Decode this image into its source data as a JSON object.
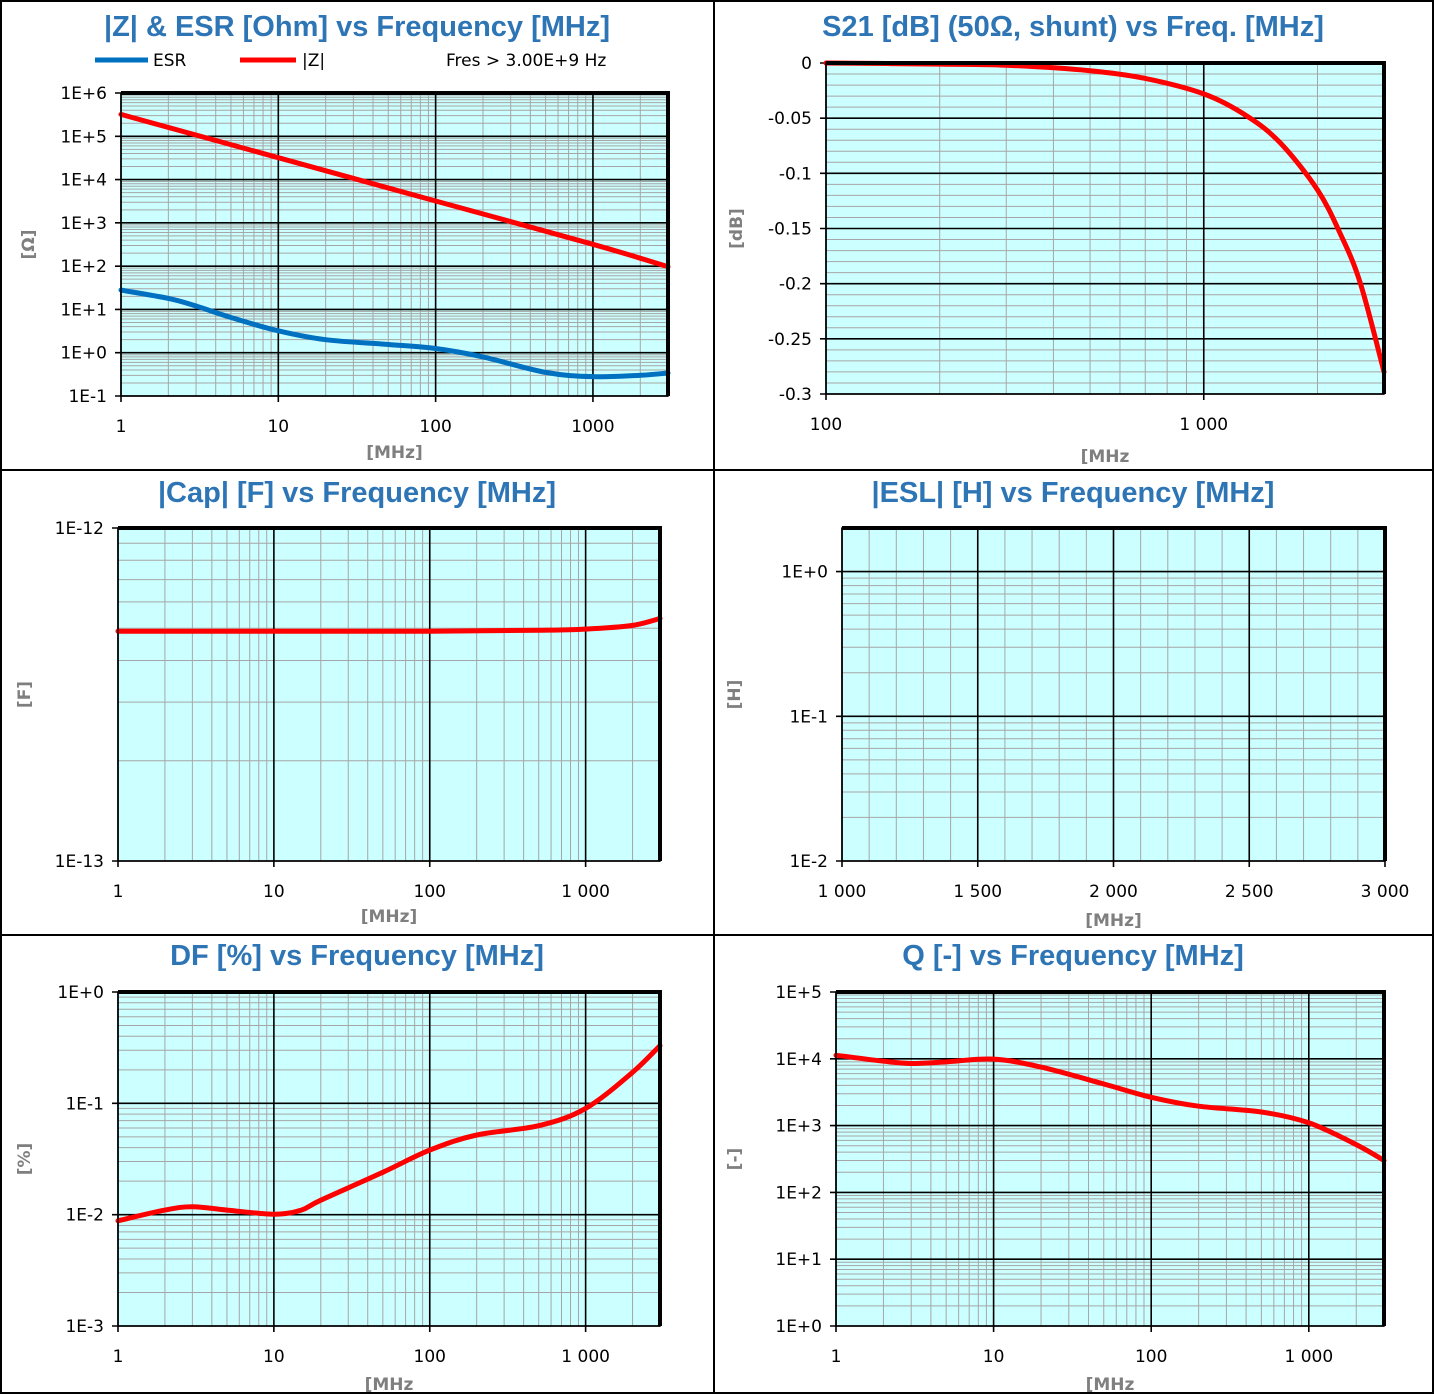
{
  "colors": {
    "plot_bg": "#ccffff",
    "major_grid": "#000000",
    "minor_grid": "#a6a6a6",
    "title": "#2e75b6",
    "axis_label": "#7f7f7f",
    "esr": "#0070c0",
    "main_series": "#ff0000"
  },
  "chart_data": [
    {
      "id": "z",
      "type": "line",
      "title": "|Z| & ESR [Ohm] vs Frequency [MHz]",
      "xlabel": "[MHz]",
      "ylabel": "[Ω]",
      "xscale": "log",
      "yscale": "log",
      "xlim": [
        1,
        3000
      ],
      "ylim": [
        0.1,
        1000000
      ],
      "xticks": [
        1,
        10,
        100,
        1000
      ],
      "xticklabels": [
        "1",
        "10",
        "100",
        "1000"
      ],
      "yticks": [
        0.1,
        1,
        10,
        100,
        1000,
        10000,
        100000,
        1000000
      ],
      "yticklabels": [
        "1E-1",
        "1E+0",
        "1E+1",
        "1E+2",
        "1E+3",
        "1E+4",
        "1E+5",
        "1E+6"
      ],
      "grid": true,
      "legend": {
        "position": "top",
        "entries": [
          "ESR",
          "|Z|"
        ]
      },
      "annotation": "Fres > 3.00E+9 Hz",
      "series": [
        {
          "name": "ESR",
          "color": "#0070c0",
          "x": [
            1,
            2,
            3,
            5,
            10,
            20,
            50,
            100,
            200,
            500,
            1000,
            2000,
            3000
          ],
          "y": [
            28,
            18,
            12,
            6.5,
            3.2,
            2.0,
            1.55,
            1.25,
            0.8,
            0.35,
            0.28,
            0.3,
            0.34
          ]
        },
        {
          "name": "|Z|",
          "color": "#ff0000",
          "x": [
            1,
            10,
            100,
            1000,
            3000
          ],
          "y": [
            320000,
            32000,
            3200,
            320,
            97
          ]
        }
      ]
    },
    {
      "id": "s21",
      "type": "line",
      "title": "S21 [dB] (50Ω, shunt) vs Freq. [MHz]",
      "xlabel": "[MHz",
      "ylabel": "[dB]",
      "xscale": "log",
      "yscale": "linear",
      "xlim": [
        100,
        3000
      ],
      "ylim": [
        -0.3,
        0
      ],
      "xticks": [
        100,
        1000
      ],
      "xticklabels": [
        "100",
        "1 000"
      ],
      "yticks": [
        -0.3,
        -0.25,
        -0.2,
        -0.15,
        -0.1,
        -0.05,
        0
      ],
      "yticklabels": [
        "-0.3",
        "-0.25",
        "-0.2",
        "-0.15",
        "-0.1",
        "-0.05",
        "0"
      ],
      "grid": true,
      "series": [
        {
          "color": "#ff0000",
          "x": [
            100,
            200,
            300,
            500,
            700,
            1000,
            1300,
            1600,
            2000,
            2300,
            2600,
            3000
          ],
          "y": [
            0,
            -0.001,
            -0.002,
            -0.007,
            -0.014,
            -0.028,
            -0.048,
            -0.073,
            -0.115,
            -0.155,
            -0.2,
            -0.28
          ]
        }
      ]
    },
    {
      "id": "cap",
      "type": "line",
      "title": "|Cap| [F] vs Frequency [MHz]",
      "xlabel": "[MHz]",
      "ylabel": "[F]",
      "xscale": "log",
      "yscale": "log",
      "xlim": [
        1,
        3000
      ],
      "ylim": [
        1e-13,
        1e-12
      ],
      "xticks": [
        1,
        10,
        100,
        1000
      ],
      "xticklabels": [
        "1",
        "10",
        "100",
        "1 000"
      ],
      "yticks": [
        1e-13,
        1e-12
      ],
      "yticklabels": [
        "1E-13",
        "1E-12"
      ],
      "grid": true,
      "series": [
        {
          "color": "#ff0000",
          "x": [
            1,
            10,
            100,
            500,
            1000,
            2000,
            3000
          ],
          "y": [
            4.9e-13,
            4.9e-13,
            4.9e-13,
            4.93e-13,
            4.97e-13,
            5.1e-13,
            5.35e-13
          ]
        }
      ]
    },
    {
      "id": "esl",
      "type": "line",
      "title": "|ESL| [H] vs Frequency [MHz]",
      "xlabel": "[MHz]",
      "ylabel": "[H]",
      "xscale": "linear",
      "yscale": "log",
      "xlim": [
        1000,
        3000
      ],
      "ylim": [
        0.01,
        2
      ],
      "xticks": [
        1000,
        1500,
        2000,
        2500,
        3000
      ],
      "xticklabels": [
        "1 000",
        "1 500",
        "2 000",
        "2 500",
        "3 000"
      ],
      "yticks": [
        0.01,
        0.1,
        1
      ],
      "yticklabels": [
        "1E-2",
        "1E-1",
        "1E+0"
      ],
      "grid": true,
      "series": []
    },
    {
      "id": "df",
      "type": "line",
      "title": "DF [%] vs Frequency [MHz]",
      "xlabel": "[MHz",
      "ylabel": "[%]",
      "xscale": "log",
      "yscale": "log",
      "xlim": [
        1,
        3000
      ],
      "ylim": [
        0.001,
        1
      ],
      "xticks": [
        1,
        10,
        100,
        1000
      ],
      "xticklabels": [
        "1",
        "10",
        "100",
        "1 000"
      ],
      "yticks": [
        0.001,
        0.01,
        0.1,
        1
      ],
      "yticklabels": [
        "1E-3",
        "1E-2",
        "1E-1",
        "1E+0"
      ],
      "grid": true,
      "series": [
        {
          "color": "#ff0000",
          "x": [
            1,
            2,
            3,
            5,
            10,
            15,
            20,
            50,
            100,
            200,
            500,
            1000,
            2000,
            3000
          ],
          "y": [
            0.0088,
            0.011,
            0.0118,
            0.011,
            0.0101,
            0.011,
            0.0135,
            0.024,
            0.038,
            0.052,
            0.063,
            0.09,
            0.19,
            0.33
          ]
        }
      ]
    },
    {
      "id": "q",
      "type": "line",
      "title": "Q [-] vs Frequency [MHz]",
      "xlabel": "[MHz",
      "ylabel": "[-]",
      "xscale": "log",
      "yscale": "log",
      "xlim": [
        1,
        3000
      ],
      "ylim": [
        1,
        100000
      ],
      "xticks": [
        1,
        10,
        100,
        1000
      ],
      "xticklabels": [
        "1",
        "10",
        "100",
        "1 000"
      ],
      "yticks": [
        1,
        10,
        100,
        1000,
        10000,
        100000
      ],
      "yticklabels": [
        "1E+0",
        "1E+1",
        "1E+2",
        "1E+3",
        "1E+4",
        "1E+5"
      ],
      "grid": true,
      "series": [
        {
          "color": "#ff0000",
          "x": [
            1,
            2,
            3,
            5,
            10,
            20,
            50,
            100,
            200,
            500,
            1000,
            2000,
            3000
          ],
          "y": [
            11300,
            9200,
            8500,
            9000,
            9900,
            7500,
            4200,
            2650,
            1950,
            1600,
            1100,
            520,
            300
          ]
        }
      ]
    }
  ]
}
